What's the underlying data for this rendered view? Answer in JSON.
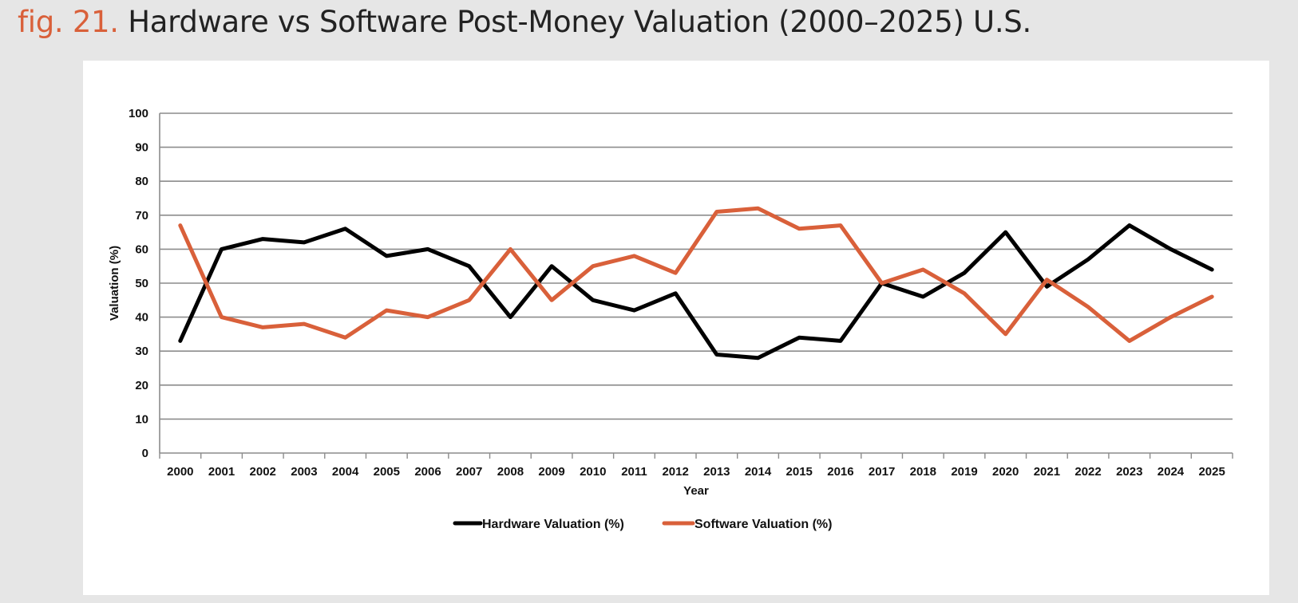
{
  "header": {
    "fig_label": "fig. 21.",
    "title": "Hardware vs Software Post-Money Valuation (2000–2025) U.S."
  },
  "chart_data": {
    "type": "line",
    "title": "",
    "xlabel": "Year",
    "ylabel": "Valuation (%)",
    "ylim": [
      0,
      100
    ],
    "yticks": [
      0,
      10,
      20,
      30,
      40,
      50,
      60,
      70,
      80,
      90,
      100
    ],
    "grid": true,
    "legend_position": "bottom",
    "categories": [
      "2000",
      "2001",
      "2002",
      "2003",
      "2004",
      "2005",
      "2006",
      "2007",
      "2008",
      "2009",
      "2010",
      "2011",
      "2012",
      "2013",
      "2014",
      "2015",
      "2016",
      "2017",
      "2018",
      "2019",
      "2020",
      "2021",
      "2022",
      "2023",
      "2024",
      "2025"
    ],
    "series": [
      {
        "name": "Hardware Valuation (%)",
        "color": "#000000",
        "values": [
          33,
          60,
          63,
          62,
          66,
          58,
          60,
          55,
          40,
          55,
          45,
          42,
          47,
          29,
          28,
          34,
          33,
          50,
          46,
          53,
          65,
          49,
          57,
          67,
          60,
          54
        ]
      },
      {
        "name": "Software Valuation (%)",
        "color": "#d9603a",
        "values": [
          67,
          40,
          37,
          38,
          34,
          42,
          40,
          45,
          60,
          45,
          55,
          58,
          53,
          71,
          72,
          66,
          67,
          50,
          54,
          47,
          35,
          51,
          43,
          33,
          40,
          46
        ]
      }
    ]
  }
}
